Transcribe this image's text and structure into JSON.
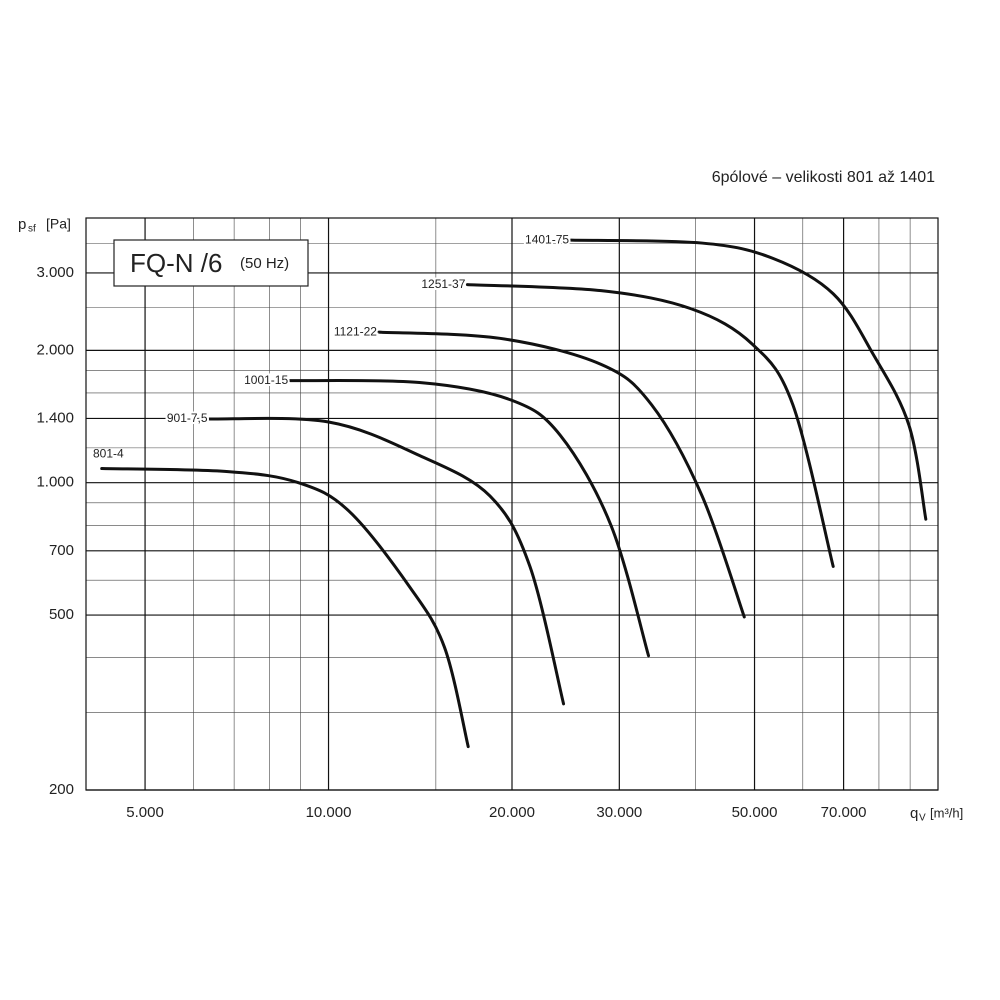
{
  "chart_data": {
    "type": "line",
    "subtitle": "6pólové – velikosti 801 až 1401",
    "box_title": "FQ-N /6",
    "box_subtitle": "(50 Hz)",
    "ylabel": {
      "symbol": "p",
      "subscript": "sf",
      "unit": "[Pa]"
    },
    "xlabel": {
      "symbol": "q",
      "subscript": "V",
      "unit": "[m³/h]"
    },
    "log_x": true,
    "log_y": true,
    "grid": true,
    "xlim": [
      4000,
      100000
    ],
    "ylim": [
      200,
      4000
    ],
    "xticks": [
      {
        "value": 5000,
        "label": "5.000"
      },
      {
        "value": 10000,
        "label": "10.000"
      },
      {
        "value": 20000,
        "label": "20.000"
      },
      {
        "value": 30000,
        "label": "30.000"
      },
      {
        "value": 50000,
        "label": "50.000"
      },
      {
        "value": 70000,
        "label": "70.000"
      }
    ],
    "yticks": [
      200,
      500,
      700,
      {
        "value": 1000,
        "label": "1.000"
      },
      {
        "value": 1400,
        "label": "1.400"
      },
      {
        "value": 2000,
        "label": "2.000"
      },
      {
        "value": 3000,
        "label": "3.000"
      }
    ],
    "x_minor_ticks": [
      4000,
      6000,
      7000,
      8000,
      9000,
      15000,
      40000,
      60000,
      80000,
      90000,
      100000
    ],
    "y_minor_ticks": [
      300,
      400,
      600,
      800,
      900,
      1200,
      1600,
      1800,
      2500,
      3500
    ],
    "series": [
      {
        "name": "801-4",
        "color": "#111111",
        "x": [
          4245,
          6840,
          8925,
          10800,
          13580,
          15500,
          16950
        ],
        "values": [
          1077,
          1060,
          1000,
          862,
          580,
          422,
          251
        ]
      },
      {
        "name": "901-7,5",
        "color": "#111111",
        "x": [
          6380,
          10000,
          14100,
          18400,
          21400,
          24300
        ],
        "values": [
          1396,
          1374,
          1153,
          933,
          645,
          314
        ]
      },
      {
        "name": "1001-15",
        "color": "#111111",
        "x": [
          8650,
          14100,
          19900,
          24000,
          29100,
          33500
        ],
        "values": [
          1707,
          1690,
          1543,
          1282,
          797,
          404
        ]
      },
      {
        "name": "1121-22",
        "color": "#111111",
        "x": [
          12100,
          19100,
          28000,
          33900,
          41000,
          48100
        ],
        "values": [
          2200,
          2130,
          1858,
          1503,
          934,
          495
        ]
      },
      {
        "name": "1251-37",
        "color": "#111111",
        "x": [
          16900,
          28000,
          39400,
          49600,
          57800,
          67300
        ],
        "values": [
          2822,
          2734,
          2485,
          2065,
          1503,
          645
        ]
      },
      {
        "name": "1401-75",
        "color": "#111111",
        "x": [
          25000,
          41000,
          53600,
          67300,
          78300,
          89600,
          95500
        ],
        "values": [
          3562,
          3508,
          3238,
          2690,
          1958,
          1352,
          826
        ]
      }
    ]
  }
}
